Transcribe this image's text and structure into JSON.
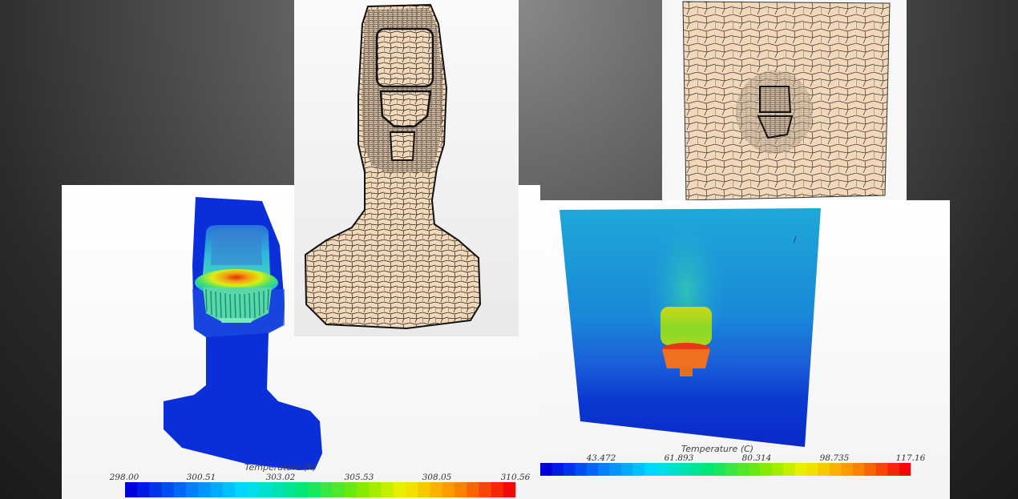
{
  "colorbar_left": {
    "title": "Temperature (K)",
    "ticks": [
      "298.00",
      "300.51",
      "303.02",
      "305.53",
      "308.05",
      "310.56"
    ]
  },
  "colorbar_right": {
    "title": "Temperature (C)",
    "ticks": [
      "43.472",
      "61.893",
      "80.314",
      "98.735",
      "117.16"
    ]
  },
  "colors": {
    "mesh_fill": "#f2d7b8",
    "mesh_line": "#1a1a1a",
    "cold": "#0a1fd0",
    "hot": "#ee1111"
  }
}
